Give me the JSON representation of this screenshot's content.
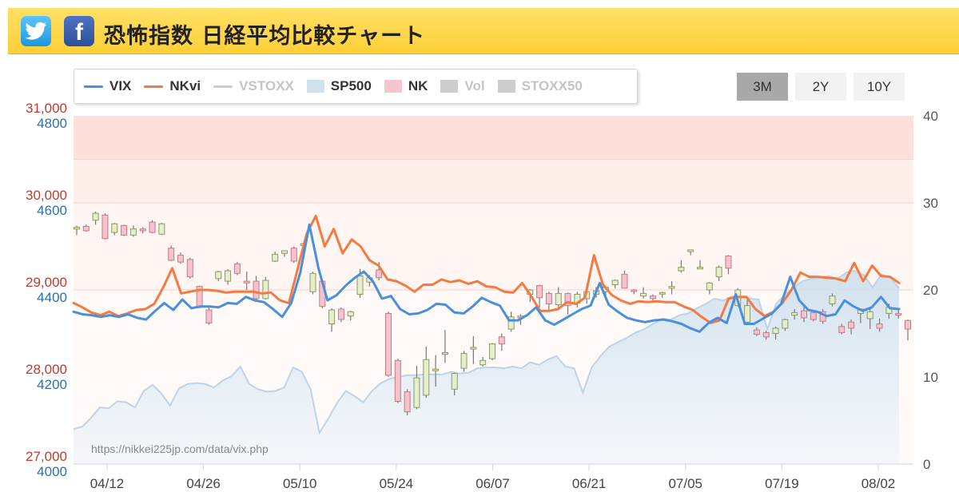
{
  "header": {
    "title": "恐怖指数 日経平均比較チャート",
    "twitter_icon": "twitter-bird-icon",
    "facebook_icon": "facebook-f-icon"
  },
  "range_buttons": [
    {
      "label": "3M",
      "active": true
    },
    {
      "label": "2Y",
      "active": false
    },
    {
      "label": "10Y",
      "active": false
    }
  ],
  "legend": [
    {
      "label": "VIX",
      "kind": "line",
      "color": "#4a8fde",
      "enabled": true
    },
    {
      "label": "NKvi",
      "kind": "line",
      "color": "#f47a44",
      "enabled": true
    },
    {
      "label": "VSTOXX",
      "kind": "line",
      "color": "#cccccc",
      "enabled": false
    },
    {
      "label": "SP500",
      "kind": "area",
      "color": "#cfe2f0",
      "enabled": true
    },
    {
      "label": "NK",
      "kind": "area",
      "color": "#f6c4cc",
      "enabled": true
    },
    {
      "label": "Vol",
      "kind": "area",
      "color": "#cccccc",
      "enabled": false
    },
    {
      "label": "STOXX50",
      "kind": "area",
      "color": "#cccccc",
      "enabled": false
    }
  ],
  "watermark": "https://nikkei225jp.com/data/vix.php",
  "chart_data": {
    "type": "line",
    "x_ticks": [
      "04/12",
      "04/26",
      "05/10",
      "05/24",
      "06/07",
      "06/21",
      "07/05",
      "07/19",
      "08/02"
    ],
    "axes": {
      "nk": {
        "ticks": [
          "27,000",
          "28,000",
          "29,000",
          "30,000",
          "31,000"
        ],
        "color": "#c0392b"
      },
      "sp500": {
        "ticks": [
          "4000",
          "4200",
          "4400",
          "4600",
          "4800"
        ],
        "color": "#2f6fb0"
      },
      "vix": {
        "ticks": [
          "0",
          "10",
          "20",
          "30",
          "40"
        ],
        "range": [
          0,
          40
        ]
      }
    },
    "fear_bands": [
      {
        "from": 35,
        "to": 40,
        "color": "#fde0da"
      },
      {
        "from": 30,
        "to": 35,
        "color": "#feeeea"
      },
      {
        "from": 20,
        "to": 30,
        "color": "#fff5f2"
      },
      {
        "from": 0,
        "to": 20,
        "color": "#fffaf8"
      }
    ],
    "series": [
      {
        "name": "VIX",
        "color": "#4a8fde",
        "values": [
          17.5,
          17.2,
          17.1,
          16.9,
          17.1,
          16.9,
          17.2,
          16.8,
          16.6,
          17.6,
          18.5,
          17.7,
          18.9,
          17.9,
          18.1,
          18.1,
          18.0,
          18.5,
          18.4,
          19.2,
          18.8,
          18.6,
          17.8,
          16.9,
          18.5,
          22,
          27.5,
          22.5,
          18.8,
          19.4,
          20.5,
          21.4,
          22.1,
          21,
          19,
          19.3,
          17.8,
          17.2,
          17.3,
          17.7,
          18.4,
          18.3,
          17.4,
          17.3,
          18.1,
          19.1,
          18.6,
          18.2,
          16.5,
          16.5,
          17.1,
          18.0,
          16.5,
          16.0,
          16.6,
          17.2,
          17.8,
          18.2,
          20.8,
          18.3,
          17.5,
          16.8,
          16.5,
          16.3,
          16.5,
          16.6,
          16.4,
          16.1,
          15.6,
          15.2,
          16.2,
          16.8,
          16.2,
          19.5,
          16.1,
          16.1,
          16.7,
          17.3,
          18.4,
          21.5,
          18.8,
          17.7,
          17.5,
          17.0,
          17.2,
          18.8,
          18.1,
          17.6,
          18.0,
          19.2,
          17.9,
          17.8
        ]
      },
      {
        "name": "NKvi",
        "color": "#f47a44",
        "values": [
          18.5,
          18.0,
          17.4,
          17.1,
          17.5,
          17.0,
          17.3,
          17.7,
          17.8,
          18.4,
          20.3,
          22.5,
          19.6,
          19.8,
          20.0,
          20.0,
          19.9,
          19.7,
          19.8,
          19.8,
          19.8,
          19.6,
          19.7,
          18.8,
          18.5,
          22.5,
          26.5,
          28.5,
          25,
          27,
          24.2,
          25.8,
          25,
          23.4,
          22.8,
          21.2,
          21,
          20.5,
          19.8,
          20.6,
          20.6,
          21.2,
          20.9,
          21.1,
          20.7,
          21.0,
          20.4,
          20.3,
          19.8,
          19.7,
          20.8,
          19.3,
          17.6,
          17.6,
          17.8,
          18.6,
          18.4,
          19.1,
          24.0,
          20.6,
          19.4,
          18.8,
          18.4,
          18.7,
          18.6,
          18.7,
          18.6,
          18.6,
          18.1,
          17.7,
          16.9,
          16.2,
          16.5,
          19.0,
          19.2,
          19.2,
          17.8,
          17.0,
          17.5,
          18.5,
          20,
          22,
          21.5,
          21.5,
          21.4,
          21.3,
          21,
          23.1,
          21,
          22.8,
          21.6,
          21.5,
          20.8
        ]
      },
      {
        "name": "SP500",
        "color": "#cfe2f0",
        "values": [
          4.0,
          4.3,
          5.3,
          6.5,
          6.4,
          7.2,
          7.1,
          6.5,
          8.4,
          9.1,
          8.1,
          6.7,
          8.7,
          9.2,
          9.3,
          9.2,
          8.8,
          9.6,
          10.1,
          11.2,
          9.2,
          8.6,
          8.3,
          8.4,
          8.8,
          11.1,
          10.6,
          8.6,
          3.6,
          5.2,
          7.0,
          8.4,
          7.8,
          7.1,
          8.4,
          9.3,
          9.8,
          10.0,
          10.2,
          10.2,
          10.3,
          10.3,
          10.3,
          10.6,
          10.4,
          10.5,
          11.0,
          11.1,
          11.1,
          11.0,
          11.2,
          11.0,
          11.7,
          11.4,
          12.0,
          12.4,
          11.2,
          11.0,
          8.2,
          11.1,
          12.4,
          13.5,
          14.0,
          14.5,
          15.1,
          15.5,
          16.1,
          16.7,
          16.6,
          17.1,
          17.3,
          17.9,
          18.4,
          19.0,
          18.8,
          19.3,
          19.2,
          19.0,
          18.9,
          15.5,
          18.4,
          19.5,
          20.3,
          21.0,
          21.3,
          21.4,
          21.6,
          21.3,
          22.0,
          22.2,
          21.7,
          20.3,
          21.8,
          21.4,
          20.2
        ]
      },
      {
        "name": "NK",
        "color": "#f6c4cc",
        "candles": [
          [
            27.0,
            27.2,
            26.3,
            27.4
          ],
          [
            27.3,
            26.8,
            26.7,
            27.5
          ],
          [
            28.0,
            28.8,
            27.5,
            29.0
          ],
          [
            28.6,
            25.9,
            25.8,
            28.8
          ],
          [
            26.6,
            27.6,
            26.3,
            27.7
          ],
          [
            27.4,
            26.3,
            26.2,
            27.5
          ],
          [
            26.3,
            27.0,
            26.1,
            27.4
          ],
          [
            27.0,
            26.8,
            26.5,
            27.2
          ],
          [
            27.8,
            26.6,
            26.5,
            28.0
          ],
          [
            26.4,
            27.6,
            26.3,
            27.7
          ],
          [
            24.8,
            23.4,
            23.3,
            25.1
          ],
          [
            24.0,
            23.2,
            23.0,
            24.3
          ],
          [
            23.5,
            21.5,
            21.3,
            23.7
          ],
          [
            20.4,
            18.0,
            17.9,
            20.5
          ],
          [
            17.7,
            16.2,
            16.0,
            18.0
          ],
          [
            21.3,
            22.1,
            21.0,
            22.2
          ],
          [
            21.0,
            22.2,
            20.6,
            22.4
          ],
          [
            23.0,
            21.9,
            21.7,
            23.2
          ],
          [
            21.0,
            20.8,
            20.0,
            22.1
          ],
          [
            21.0,
            19.0,
            18.9,
            21.6
          ],
          [
            19.0,
            21.1,
            18.9,
            21.5
          ],
          [
            23.3,
            24.1,
            23.2,
            24.4
          ],
          [
            24.2,
            24.5,
            23.8,
            24.5
          ],
          [
            24.8,
            23.3,
            23.1,
            25.0
          ],
          [
            25.1,
            25.3,
            24.5,
            25.4
          ],
          [
            19.8,
            21.9,
            19.5,
            22.1
          ],
          [
            21.0,
            18.1,
            17.9,
            21.2
          ],
          [
            16.1,
            17.7,
            15.2,
            17.9
          ],
          [
            17.8,
            16.6,
            16.3,
            18.0
          ],
          [
            17.0,
            17.5,
            16.5,
            17.6
          ],
          [
            19.5,
            21.6,
            19.1,
            22.4
          ],
          [
            20.9,
            21.4,
            20.4,
            21.7
          ],
          [
            22.3,
            21.4,
            21.1,
            23.2
          ],
          [
            17.3,
            10.2,
            10.0,
            17.5
          ],
          [
            11.9,
            7.2,
            7.0,
            12.1
          ],
          [
            8.3,
            6.0,
            5.6,
            8.6
          ],
          [
            6.5,
            9.9,
            6.3,
            11.3
          ],
          [
            7.9,
            12.0,
            7.6,
            13.5
          ],
          [
            10.9,
            10.9,
            8.9,
            12.5
          ],
          [
            12.7,
            12.8,
            11.6,
            15.4
          ],
          [
            8.6,
            10.4,
            7.9,
            10.5
          ],
          [
            11.0,
            12.7,
            10.6,
            13.0
          ],
          [
            13.2,
            13.4,
            11.5,
            14.7
          ],
          [
            11.4,
            11.9,
            11.2,
            12.3
          ],
          [
            12.1,
            13.8,
            11.9,
            13.9
          ],
          [
            14.6,
            13.8,
            13.0,
            15.0
          ],
          [
            15.5,
            16.9,
            15.2,
            17.5
          ],
          [
            17.0,
            16.8,
            16.0,
            17.2
          ],
          [
            19.5,
            20.0,
            18.6,
            20.1
          ],
          [
            20.5,
            19.1,
            18.0,
            20.6
          ],
          [
            19.6,
            18.4,
            17.7,
            19.8
          ],
          [
            18.3,
            19.6,
            17.7,
            20.3
          ],
          [
            19.6,
            18.2,
            17.2,
            19.7
          ],
          [
            18.5,
            19.5,
            18.0,
            19.8
          ],
          [
            19.0,
            19.8,
            18.4,
            20.0
          ],
          [
            19.5,
            19.9,
            19.1,
            20.3
          ],
          [
            19.8,
            20.3,
            18.8,
            20.5
          ],
          [
            20.6,
            21.1,
            20.2,
            21.2
          ],
          [
            21.8,
            20.2,
            20.2,
            22.2
          ],
          [
            20.0,
            19.9,
            19.5,
            20.1
          ],
          [
            19.3,
            19.6,
            19.0,
            20.3
          ],
          [
            19.3,
            19.0,
            18.7,
            19.5
          ],
          [
            19.6,
            19.7,
            19.1,
            19.8
          ],
          [
            20.2,
            20.4,
            19.5,
            21.0
          ],
          [
            22.2,
            22.6,
            22.0,
            23.4
          ],
          [
            24.4,
            24.6,
            24.0,
            24.6
          ],
          [
            22.6,
            22.6,
            22.4,
            23.4
          ],
          [
            20.0,
            20.8,
            19.5,
            20.9
          ],
          [
            21.5,
            22.6,
            21.0,
            22.8
          ],
          [
            23.9,
            22.5,
            21.8,
            24.0
          ],
          [
            18.2,
            20.0,
            18.1,
            20.2
          ],
          [
            16.3,
            18.2,
            16.0,
            19.1
          ],
          [
            15.4,
            14.9,
            14.7,
            15.7
          ],
          [
            15.1,
            14.6,
            14.3,
            15.3
          ],
          [
            15.0,
            15.6,
            14.3,
            15.8
          ],
          [
            15.6,
            16.6,
            15.3,
            16.7
          ],
          [
            17.1,
            17.4,
            16.6,
            17.8
          ],
          [
            17.6,
            16.8,
            16.3,
            18.1
          ],
          [
            17.4,
            16.6,
            16.4,
            17.7
          ],
          [
            17.5,
            16.4,
            16.1,
            17.8
          ],
          [
            18.4,
            19.3,
            18.1,
            19.6
          ],
          [
            15.8,
            15.1,
            14.9,
            16.1
          ],
          [
            16.3,
            15.6,
            14.9,
            16.6
          ],
          [
            17.3,
            17.8,
            16.2,
            17.9
          ],
          [
            16.7,
            17.5,
            15.5,
            17.8
          ],
          [
            16.1,
            15.6,
            15.2,
            16.7
          ],
          [
            17.3,
            18.0,
            16.7,
            18.4
          ],
          [
            17.3,
            17.1,
            16.7,
            17.7
          ],
          [
            16.5,
            15.5,
            14.2,
            16.6
          ]
        ]
      }
    ]
  }
}
